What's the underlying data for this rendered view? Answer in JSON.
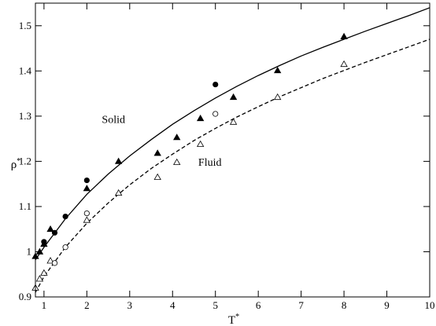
{
  "chart_data": {
    "type": "scatter",
    "title": "",
    "xlabel": "T*",
    "ylabel": "ρ*",
    "xlim": [
      0.8,
      10
    ],
    "ylim": [
      0.9,
      1.55
    ],
    "x_ticks": [
      1,
      2,
      3,
      4,
      5,
      6,
      7,
      8,
      9,
      10
    ],
    "y_ticks": [
      0.9,
      1.0,
      1.1,
      1.2,
      1.3,
      1.4,
      1.5
    ],
    "x_tick_labels": [
      "1",
      "2",
      "3",
      "4",
      "5",
      "6",
      "7",
      "8",
      "9",
      "10"
    ],
    "y_tick_labels": [
      "0.9",
      "1",
      "1.1",
      "1.2",
      "1.3",
      "1.4",
      "1.5"
    ],
    "grid": false,
    "annotations": [
      {
        "text": "Solid",
        "x": 2.35,
        "y": 1.285
      },
      {
        "text": "Fluid",
        "x": 4.6,
        "y": 1.19
      }
    ],
    "series": [
      {
        "marker": "triangle-filled",
        "points": [
          [
            0.8,
            0.99
          ],
          [
            0.9,
            1.0
          ],
          [
            1.0,
            1.017
          ],
          [
            1.15,
            1.05
          ],
          [
            2.0,
            1.14
          ],
          [
            2.74,
            1.2
          ],
          [
            3.65,
            1.218
          ],
          [
            4.1,
            1.253
          ],
          [
            4.65,
            1.295
          ],
          [
            5.42,
            1.342
          ],
          [
            6.45,
            1.401
          ],
          [
            8.0,
            1.476
          ]
        ]
      },
      {
        "marker": "circle-filled",
        "points": [
          [
            1.0,
            1.022
          ],
          [
            1.25,
            1.042
          ],
          [
            1.5,
            1.078
          ],
          [
            2.0,
            1.158
          ],
          [
            5.0,
            1.37
          ]
        ]
      },
      {
        "marker": "triangle-open",
        "points": [
          [
            0.8,
            0.92
          ],
          [
            0.9,
            0.94
          ],
          [
            1.0,
            0.953
          ],
          [
            1.15,
            0.98
          ],
          [
            2.0,
            1.07
          ],
          [
            2.74,
            1.13
          ],
          [
            3.65,
            1.165
          ],
          [
            4.1,
            1.198
          ],
          [
            4.65,
            1.238
          ],
          [
            5.42,
            1.287
          ],
          [
            6.45,
            1.342
          ],
          [
            8.0,
            1.415
          ]
        ]
      },
      {
        "marker": "circle-open",
        "points": [
          [
            1.25,
            0.975
          ],
          [
            1.5,
            1.01
          ],
          [
            2.0,
            1.085
          ],
          [
            5.0,
            1.305
          ]
        ]
      },
      {
        "line": "solid",
        "points": [
          [
            0.8,
            0.982
          ],
          [
            1.0,
            1.01
          ],
          [
            1.5,
            1.073
          ],
          [
            2.0,
            1.127
          ],
          [
            2.5,
            1.172
          ],
          [
            3.0,
            1.212
          ],
          [
            3.5,
            1.248
          ],
          [
            4.0,
            1.282
          ],
          [
            4.5,
            1.312
          ],
          [
            5.0,
            1.34
          ],
          [
            5.5,
            1.366
          ],
          [
            6.0,
            1.39
          ],
          [
            6.5,
            1.412
          ],
          [
            7.0,
            1.433
          ],
          [
            7.5,
            1.452
          ],
          [
            8.0,
            1.47
          ],
          [
            8.5,
            1.488
          ],
          [
            9.0,
            1.505
          ],
          [
            9.5,
            1.522
          ],
          [
            10.0,
            1.54
          ]
        ]
      },
      {
        "line": "dashed",
        "points": [
          [
            0.8,
            0.91
          ],
          [
            1.0,
            0.945
          ],
          [
            1.5,
            1.01
          ],
          [
            2.0,
            1.063
          ],
          [
            2.5,
            1.108
          ],
          [
            3.0,
            1.148
          ],
          [
            3.5,
            1.184
          ],
          [
            4.0,
            1.216
          ],
          [
            4.5,
            1.246
          ],
          [
            5.0,
            1.273
          ],
          [
            5.5,
            1.298
          ],
          [
            6.0,
            1.321
          ],
          [
            6.5,
            1.343
          ],
          [
            7.0,
            1.363
          ],
          [
            7.5,
            1.383
          ],
          [
            8.0,
            1.401
          ],
          [
            8.5,
            1.419
          ],
          [
            9.0,
            1.436
          ],
          [
            9.5,
            1.453
          ],
          [
            10.0,
            1.47
          ]
        ]
      }
    ]
  }
}
